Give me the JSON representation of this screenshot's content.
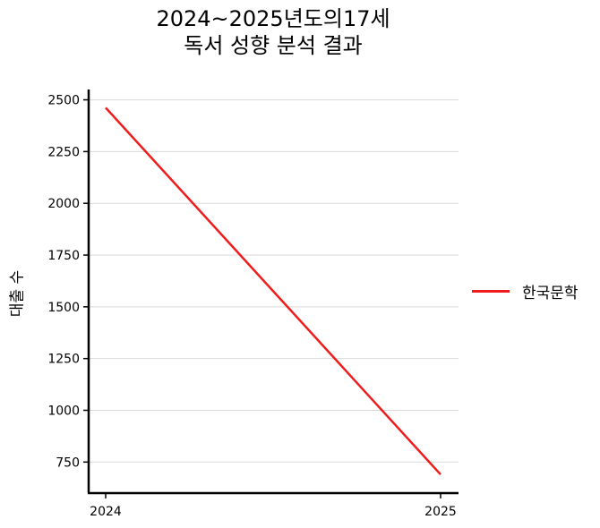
{
  "chart_data": {
    "type": "line",
    "title_lines": [
      "2024~2025년도의17세",
      "독서 성향 분석 결과"
    ],
    "xlabel": "",
    "ylabel": "대출 수",
    "x": [
      2024,
      2025
    ],
    "xticks": [
      "2024",
      "2025"
    ],
    "yticks": [
      750,
      1000,
      1250,
      1500,
      1750,
      2000,
      2250,
      2500
    ],
    "ylim": [
      600,
      2550
    ],
    "grid": "horizontal",
    "legend_position": "right",
    "series": [
      {
        "name": "한국문학",
        "values": [
          2462,
          690
        ],
        "color": "#ee1c1c"
      }
    ]
  }
}
